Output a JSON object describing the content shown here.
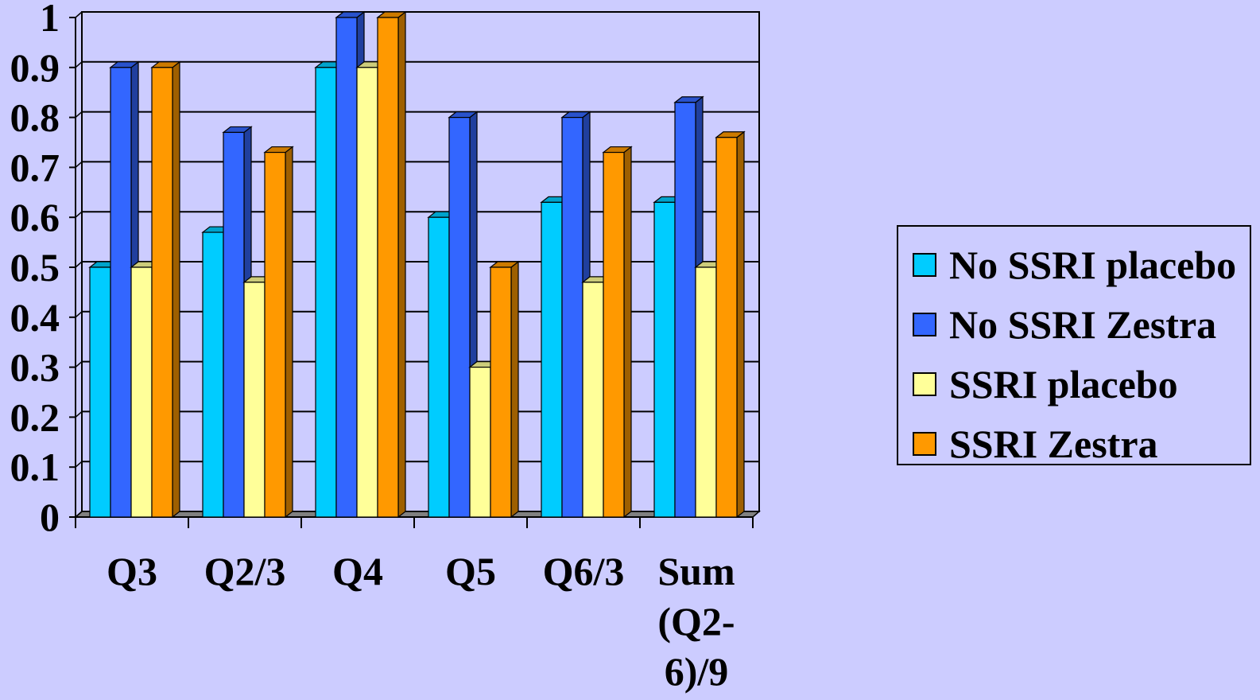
{
  "chart_data": {
    "type": "bar",
    "categories": [
      "Q3",
      "Q2/3",
      "Q4",
      "Q5",
      "Q6/3",
      "Sum (Q2-6)/9"
    ],
    "category_label_lines": [
      [
        "Q3"
      ],
      [
        "Q2/3"
      ],
      [
        "Q4"
      ],
      [
        "Q5"
      ],
      [
        "Q6/3"
      ],
      [
        "Sum",
        "(Q2-",
        "6)/9"
      ]
    ],
    "series": [
      {
        "name": "No SSRI placebo",
        "color": "#00ccff",
        "values": [
          0.5,
          0.57,
          0.9,
          0.6,
          0.63,
          0.63
        ]
      },
      {
        "name": "No SSRI Zestra",
        "color": "#3366ff",
        "values": [
          0.9,
          0.77,
          1.0,
          0.8,
          0.8,
          0.83
        ]
      },
      {
        "name": "SSRI placebo",
        "color": "#ffff99",
        "values": [
          0.5,
          0.47,
          0.9,
          0.3,
          0.47,
          0.5
        ]
      },
      {
        "name": "SSRI Zestra",
        "color": "#ff9900",
        "values": [
          0.9,
          0.73,
          1.0,
          0.5,
          0.73,
          0.76
        ]
      }
    ],
    "y_ticks": [
      "0",
      "0.1",
      "0.2",
      "0.3",
      "0.4",
      "0.5",
      "0.6",
      "0.7",
      "0.8",
      "0.9",
      "1"
    ],
    "ylim": [
      0,
      1
    ],
    "grid": true,
    "legend_position": "right",
    "title": "",
    "xlabel": "",
    "ylabel": ""
  }
}
